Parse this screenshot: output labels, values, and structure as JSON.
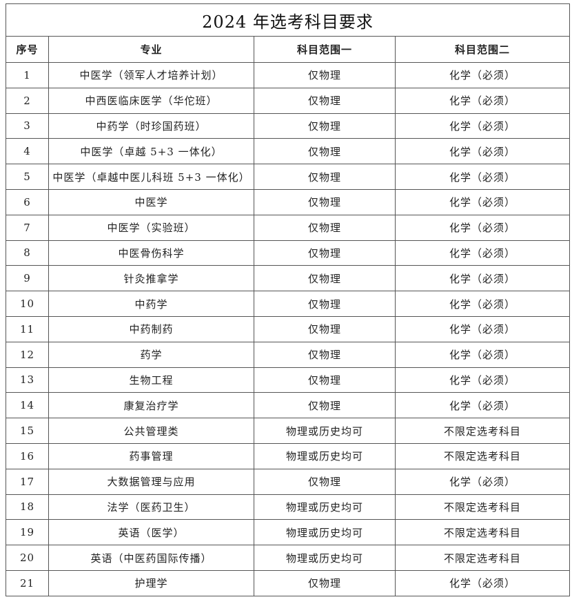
{
  "title": "2024 年选考科目要求",
  "headers": [
    "序号",
    "专业",
    "科目范围一",
    "科目范围二"
  ],
  "rows": [
    [
      "1",
      "中医学（领军人才培养计划）",
      "仅物理",
      "化学（必须）"
    ],
    [
      "2",
      "中西医临床医学（华佗班）",
      "仅物理",
      "化学（必须）"
    ],
    [
      "3",
      "中药学（时珍国药班）",
      "仅物理",
      "化学（必须）"
    ],
    [
      "4",
      "中医学（卓越 5+3 一体化）",
      "仅物理",
      "化学（必须）"
    ],
    [
      "5",
      "中医学（卓越中医儿科班 5+3 一体化）",
      "仅物理",
      "化学（必须）"
    ],
    [
      "6",
      "中医学",
      "仅物理",
      "化学（必须）"
    ],
    [
      "7",
      "中医学（实验班）",
      "仅物理",
      "化学（必须）"
    ],
    [
      "8",
      "中医骨伤科学",
      "仅物理",
      "化学（必须）"
    ],
    [
      "9",
      "针灸推拿学",
      "仅物理",
      "化学（必须）"
    ],
    [
      "10",
      "中药学",
      "仅物理",
      "化学（必须）"
    ],
    [
      "11",
      "中药制药",
      "仅物理",
      "化学（必须）"
    ],
    [
      "12",
      "药学",
      "仅物理",
      "化学（必须）"
    ],
    [
      "13",
      "生物工程",
      "仅物理",
      "化学（必须）"
    ],
    [
      "14",
      "康复治疗学",
      "仅物理",
      "化学（必须）"
    ],
    [
      "15",
      "公共管理类",
      "物理或历史均可",
      "不限定选考科目"
    ],
    [
      "16",
      "药事管理",
      "物理或历史均可",
      "不限定选考科目"
    ],
    [
      "17",
      "大数据管理与应用",
      "仅物理",
      "化学（必须）"
    ],
    [
      "18",
      "法学（医药卫生）",
      "物理或历史均可",
      "不限定选考科目"
    ],
    [
      "19",
      "英语（医学）",
      "物理或历史均可",
      "不限定选考科目"
    ],
    [
      "20",
      "英语（中医药国际传播）",
      "物理或历史均可",
      "不限定选考科目"
    ],
    [
      "21",
      "护理学",
      "仅物理",
      "化学（必须）"
    ]
  ]
}
